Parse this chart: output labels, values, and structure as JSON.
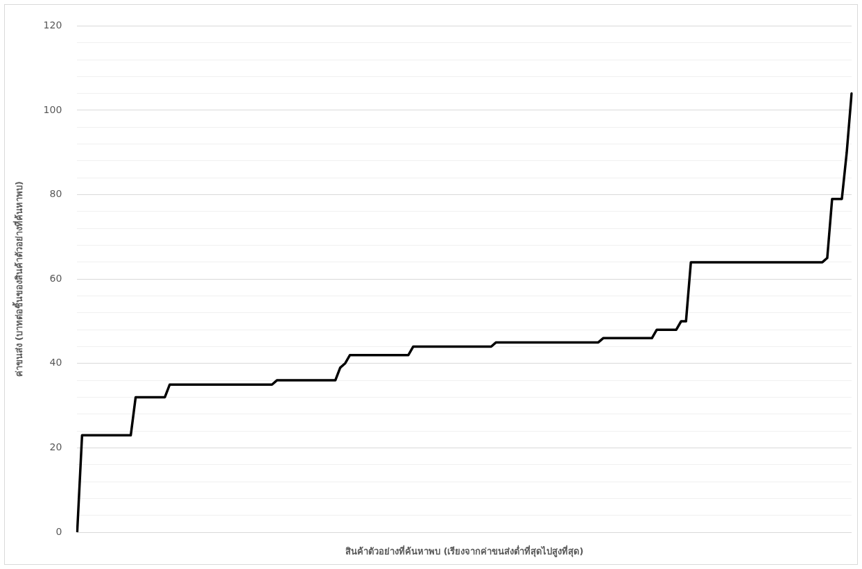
{
  "chart_data": {
    "type": "line",
    "xlabel": "สินค้าตัวอย่างที่ค้นหาพบ (เรียงจากค่าขนส่งต่ำที่สุดไปสูงที่สุด)",
    "ylabel": "ค่าขนส่ง (บาทต่อชิ้นของสินค้าตัวอย่างที่ค้นหาพบ)",
    "categories": [
      null,
      null,
      null,
      null,
      null,
      null,
      null,
      null,
      null,
      null,
      null,
      null,
      null,
      null,
      null,
      null,
      null,
      null,
      null,
      null,
      null,
      null,
      null,
      null,
      null,
      null,
      null,
      null,
      null,
      null,
      null,
      null,
      null,
      null,
      null,
      null,
      null,
      null,
      null,
      null,
      null,
      null,
      null,
      null,
      null,
      null,
      null,
      null,
      null,
      null,
      null,
      null,
      null,
      null,
      null,
      null,
      null,
      null,
      null,
      null,
      null,
      null,
      null,
      null,
      null,
      null,
      null,
      null,
      null,
      null,
      null,
      null,
      null,
      null,
      null,
      null,
      null,
      null,
      null,
      null,
      null,
      null,
      null,
      null,
      null,
      null,
      null,
      null,
      null,
      null,
      null,
      null,
      null,
      null,
      null,
      null,
      null,
      null,
      null,
      null,
      null,
      null,
      null,
      null,
      null,
      null,
      null,
      null,
      null,
      null,
      null,
      null,
      null,
      null,
      null,
      null,
      null,
      null,
      null,
      null,
      null,
      null,
      null,
      null,
      null,
      null,
      null,
      null,
      null,
      null,
      null,
      null,
      null,
      null,
      null,
      null,
      null,
      null,
      null,
      null,
      null,
      null,
      null,
      null,
      null,
      null,
      null,
      null,
      null,
      null,
      null,
      null,
      null,
      null,
      null,
      null,
      null,
      null,
      null,
      null
    ],
    "values": [
      0,
      23,
      23,
      23,
      23,
      23,
      23,
      23,
      23,
      23,
      23,
      23,
      32,
      32,
      32,
      32,
      32,
      32,
      32,
      35,
      35,
      35,
      35,
      35,
      35,
      35,
      35,
      35,
      35,
      35,
      35,
      35,
      35,
      35,
      35,
      35,
      35,
      35,
      35,
      35,
      35,
      36,
      36,
      36,
      36,
      36,
      36,
      36,
      36,
      36,
      36,
      36,
      36,
      36,
      39,
      40,
      42,
      42,
      42,
      42,
      42,
      42,
      42,
      42,
      42,
      42,
      42,
      42,
      42,
      44,
      44,
      44,
      44,
      44,
      44,
      44,
      44,
      44,
      44,
      44,
      44,
      44,
      44,
      44,
      44,
      44,
      45,
      45,
      45,
      45,
      45,
      45,
      45,
      45,
      45,
      45,
      45,
      45,
      45,
      45,
      45,
      45,
      45,
      45,
      45,
      45,
      45,
      45,
      46,
      46,
      46,
      46,
      46,
      46,
      46,
      46,
      46,
      46,
      46,
      48,
      48,
      48,
      48,
      48,
      50,
      50,
      64,
      64,
      64,
      64,
      64,
      64,
      64,
      64,
      64,
      64,
      64,
      64,
      64,
      64,
      64,
      64,
      64,
      64,
      64,
      64,
      64,
      64,
      64,
      64,
      64,
      64,
      64,
      64,
      65,
      79,
      79,
      79,
      90,
      104
    ],
    "color": "#000000",
    "marker": "none",
    "line_style": "solid",
    "ylim": [
      0,
      120
    ],
    "yticks": [
      0,
      {
        "value": 4,
        "label": null
      },
      {
        "value": 8,
        "label": null
      },
      {
        "value": 12,
        "label": null
      },
      {
        "value": 16,
        "label": null
      },
      20,
      {
        "value": 24,
        "label": null
      },
      {
        "value": 28,
        "label": null
      },
      {
        "value": 32,
        "label": null
      },
      {
        "value": 36,
        "label": null
      },
      40,
      {
        "value": 44,
        "label": null
      },
      {
        "value": 48,
        "label": null
      },
      {
        "value": 52,
        "label": null
      },
      {
        "value": 56,
        "label": null
      },
      60,
      {
        "value": 64,
        "label": null
      },
      {
        "value": 68,
        "label": null
      },
      {
        "value": 72,
        "label": null
      },
      {
        "value": 76,
        "label": null
      },
      80,
      {
        "value": 84,
        "label": null
      },
      {
        "value": 88,
        "label": null
      },
      {
        "value": 92,
        "label": null
      },
      {
        "value": 96,
        "label": null
      },
      100,
      {
        "value": 104,
        "label": null
      },
      {
        "value": 108,
        "label": null
      },
      {
        "value": 112,
        "label": null
      },
      {
        "value": 116,
        "label": null
      },
      120
    ],
    "grid": "y",
    "legend": false
  }
}
